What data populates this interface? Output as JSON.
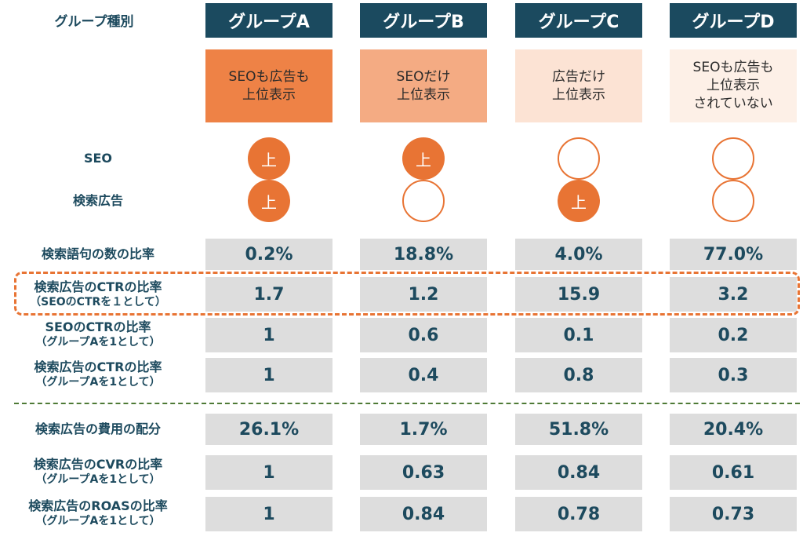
{
  "header": {
    "type_label": "グループ種別",
    "groups": [
      "グループA",
      "グループB",
      "グループC",
      "グループD"
    ]
  },
  "descriptions": [
    {
      "text": "SEOも広告も\n上位表示",
      "color": "#ee8246"
    },
    {
      "text": "SEOだけ\n上位表示",
      "color": "#f4ab83"
    },
    {
      "text": "広告だけ\n上位表示",
      "color": "#fce3d4"
    },
    {
      "text": "SEOも広告も\n上位表示\nされていない",
      "color": "#fdf0e7"
    }
  ],
  "rank_rows": [
    {
      "label": "SEO",
      "marks": [
        "上",
        "上",
        "",
        ""
      ]
    },
    {
      "label": "検索広告",
      "marks": [
        "上",
        "",
        "上",
        ""
      ]
    }
  ],
  "metric_rows": [
    {
      "label": "検索語句の数の比率",
      "sub": "",
      "values": [
        "0.2%",
        "18.8%",
        "4.0%",
        "77.0%"
      ]
    },
    {
      "label": "検索広告のCTRの比率",
      "sub": "（SEOのCTRを１として）",
      "values": [
        "1.7",
        "1.2",
        "15.9",
        "3.2"
      ]
    },
    {
      "label": "SEOのCTRの比率",
      "sub": "（グループAを1として）",
      "values": [
        "1",
        "0.6",
        "0.1",
        "0.2"
      ]
    },
    {
      "label": "検索広告のCTRの比率",
      "sub": "（グループAを1として）",
      "values": [
        "1",
        "0.4",
        "0.8",
        "0.3"
      ]
    },
    {
      "label": "検索広告の費用の配分",
      "sub": "",
      "values": [
        "26.1%",
        "1.7%",
        "51.8%",
        "20.4%"
      ]
    },
    {
      "label": "検索広告のCVRの比率",
      "sub": "（グループAを1として）",
      "values": [
        "1",
        "0.63",
        "0.84",
        "0.61"
      ]
    },
    {
      "label": "検索広告のROASの比率",
      "sub": "（グループAを1として）",
      "values": [
        "1",
        "0.84",
        "0.78",
        "0.73"
      ]
    }
  ],
  "colors": {
    "header_bg": "#1b4a5f",
    "accent": "#e87434",
    "cell_bg": "#dddddd",
    "text": "#1d4a5e",
    "separator": "#4e7a36"
  }
}
